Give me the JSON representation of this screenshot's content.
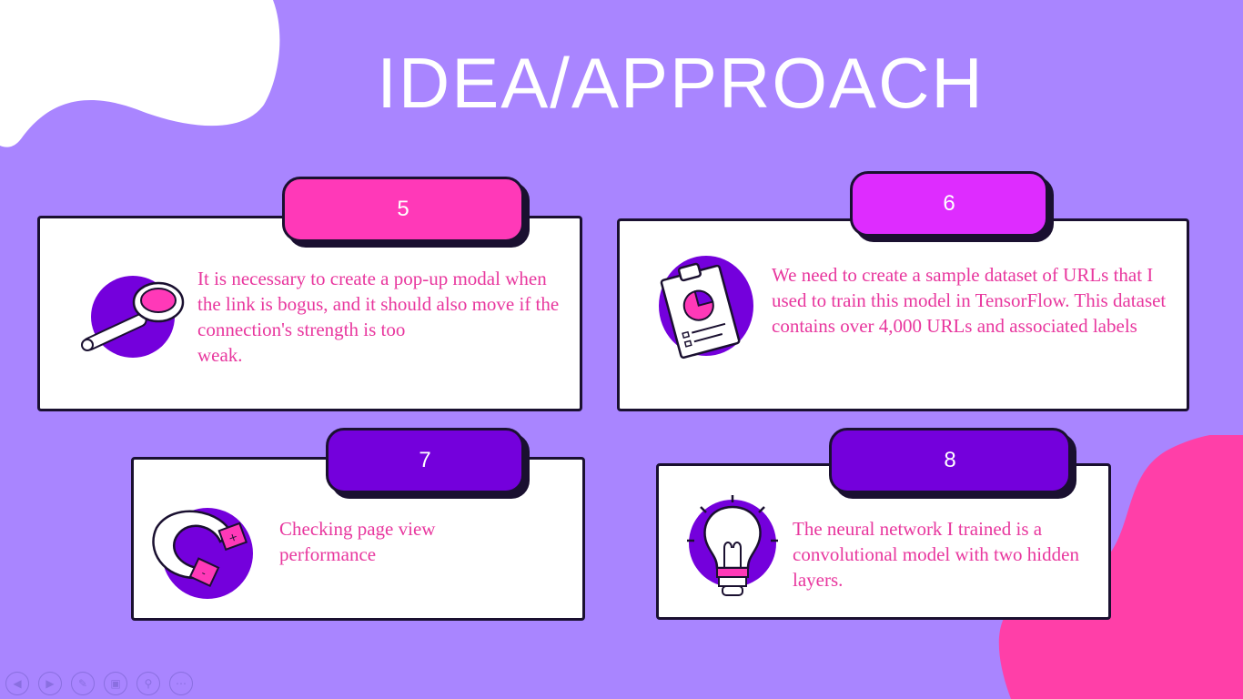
{
  "slide": {
    "title": "IDEA/APPROACH",
    "colors": {
      "background": "#a985ff",
      "pink": "#ff39b8",
      "magenta": "#de2cff",
      "purple": "#7400dc",
      "text": "#e8379e"
    },
    "cards": [
      {
        "number": "5",
        "text": "It is necessary to create a pop-up  modal when the link is bogus,  and it should also move if the  connection's strength is too",
        "text_cont": "weak.",
        "icon": "magnifier-icon"
      },
      {
        "number": "6",
        "text": "We need to create a sample dataset of  URLs that I used to train this model in  TensorFlow. This dataset contains over  4,000 URLs and associated labels",
        "icon": "clipboard-chart-icon"
      },
      {
        "number": "7",
        "text": "Checking page view performance",
        "icon": "magnet-icon"
      },
      {
        "number": "8",
        "text": "The neural network I trained  is a convolutional model with  two hidden layers.",
        "icon": "lightbulb-icon"
      }
    ]
  },
  "toolbar": {
    "buttons": [
      "previous-icon",
      "next-icon",
      "pen-icon",
      "slides-icon",
      "zoom-icon",
      "more-icon"
    ]
  }
}
